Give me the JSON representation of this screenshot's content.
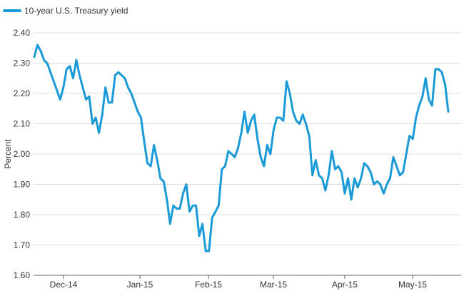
{
  "chart_data": {
    "type": "line",
    "legend": {
      "label": "10-year U.S. Treasury yield",
      "position": "top-left"
    },
    "ylabel": "Percent",
    "xlabel": "",
    "ylim": [
      1.6,
      2.4
    ],
    "yticks": [
      "1.60",
      "1.70",
      "1.80",
      "1.90",
      "2.00",
      "2.10",
      "2.20",
      "2.30",
      "2.40"
    ],
    "xticks": [
      "Dec-14",
      "Jan-15",
      "Feb-15",
      "Mar-15",
      "Apr-15",
      "May-15"
    ],
    "grid": "horizontal",
    "series_color": "#1a9ad6",
    "series": [
      {
        "values": [
          2.32,
          2.36,
          2.34,
          2.31,
          2.3,
          2.27,
          2.24,
          2.21,
          2.18,
          2.22,
          2.28,
          2.29,
          2.25,
          2.31,
          2.26,
          2.22,
          2.18,
          2.19,
          2.1,
          2.12,
          2.07,
          2.13,
          2.22,
          2.17,
          2.17,
          2.26,
          2.27,
          2.26,
          2.25,
          2.22,
          2.2,
          2.17,
          2.14,
          2.12,
          2.04,
          1.97,
          1.96,
          2.03,
          1.98,
          1.92,
          1.91,
          1.85,
          1.77,
          1.83,
          1.82,
          1.82,
          1.87,
          1.9,
          1.81,
          1.83,
          1.83,
          1.73,
          1.77,
          1.68,
          1.68,
          1.79,
          1.81,
          1.83,
          1.95,
          1.96,
          2.01,
          2.0,
          1.99,
          2.02,
          2.07,
          2.14,
          2.07,
          2.11,
          2.13,
          2.05,
          1.99,
          1.96,
          2.03,
          2.0,
          2.08,
          2.12,
          2.12,
          2.11,
          2.24,
          2.2,
          2.14,
          2.11,
          2.1,
          2.13,
          2.1,
          2.06,
          1.93,
          1.98,
          1.93,
          1.92,
          1.88,
          1.93,
          2.01,
          1.95,
          1.96,
          1.94,
          1.87,
          1.92,
          1.85,
          1.92,
          1.89,
          1.92,
          1.97,
          1.96,
          1.94,
          1.9,
          1.91,
          1.9,
          1.87,
          1.9,
          1.92,
          1.99,
          1.96,
          1.93,
          1.94,
          2.0,
          2.06,
          2.05,
          2.12,
          2.16,
          2.19,
          2.25,
          2.18,
          2.16,
          2.28,
          2.28,
          2.27,
          2.23,
          2.14
        ]
      }
    ]
  }
}
